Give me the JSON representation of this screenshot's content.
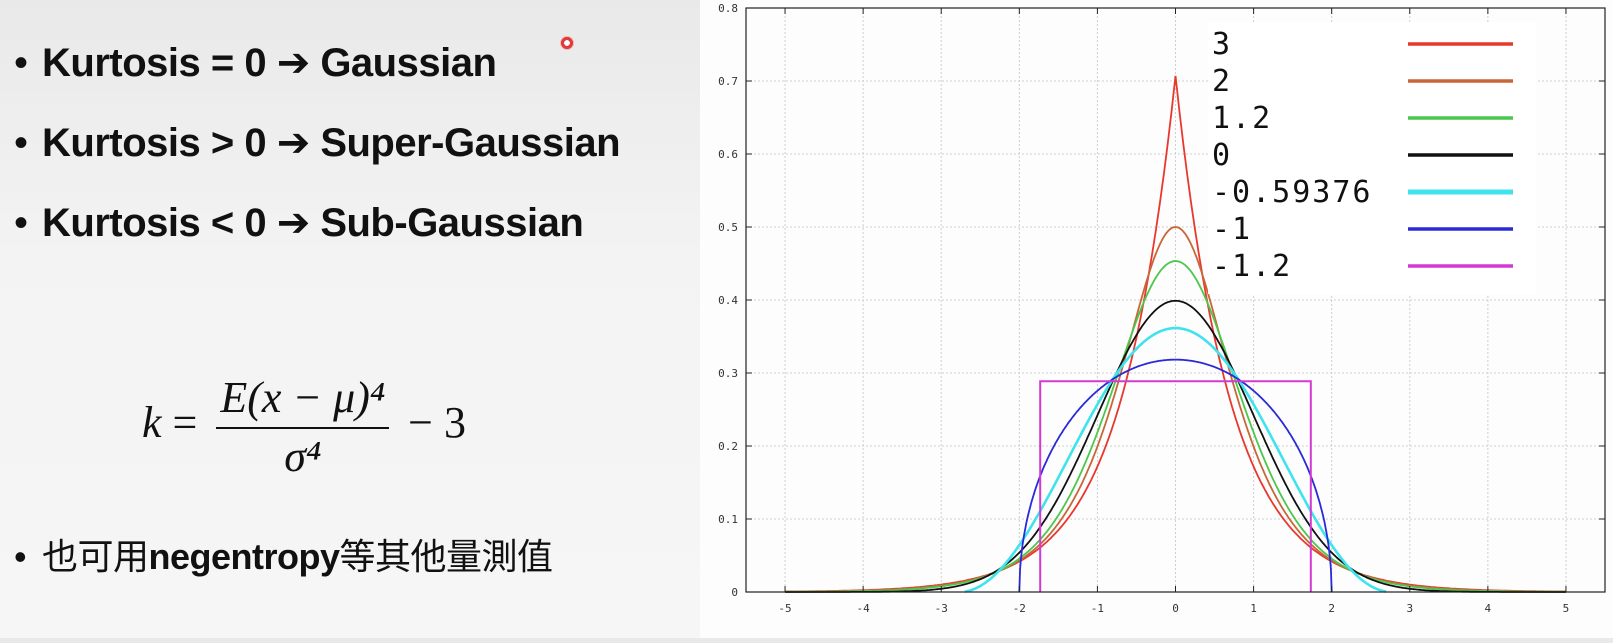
{
  "bullets": [
    {
      "marker": "•",
      "text": "Kurtosis = 0 ➔ Gaussian"
    },
    {
      "marker": "•",
      "text": "Kurtosis > 0 ➔ Super-Gaussian"
    },
    {
      "marker": "•",
      "text": "Kurtosis < 0 ➔ Sub-Gaussian"
    }
  ],
  "formula": {
    "lhs": "k",
    "equals": "=",
    "numerator": "E(x − μ)⁴",
    "denominator": "σ⁴",
    "suffix": "− 3"
  },
  "note": {
    "marker": "•",
    "prefix": "也可用",
    "keyword": "negentropy",
    "suffix": "等其他量測值"
  },
  "cursor_color": "#e23a3a",
  "chart_data": {
    "type": "line",
    "title": "",
    "xlabel": "",
    "ylabel": "",
    "xlim": [
      -5.5,
      5.5
    ],
    "ylim": [
      0,
      0.8
    ],
    "x_ticks": [
      "-5",
      "-4",
      "-3",
      "-2",
      "-1",
      "0",
      "1",
      "2",
      "3",
      "4",
      "5"
    ],
    "y_ticks": [
      "0",
      "0.1",
      "0.2",
      "0.3",
      "0.4",
      "0.5",
      "0.6",
      "0.7",
      "0.8"
    ],
    "grid": true,
    "legend_position": "top-right",
    "series": [
      {
        "name": "3",
        "color": "#e8382e",
        "distribution": "laplace",
        "variance": 1,
        "x": [
          -5,
          -4,
          -3,
          -2,
          -1.5,
          -1,
          -0.5,
          0,
          0.5,
          1,
          1.5,
          2,
          3,
          4,
          5
        ],
        "y": [
          0.0006,
          0.0025,
          0.0101,
          0.0416,
          0.0848,
          0.1723,
          0.3474,
          0.7071,
          0.3474,
          0.1723,
          0.0848,
          0.0416,
          0.0101,
          0.0025,
          0.0006
        ]
      },
      {
        "name": "2",
        "color": "#c8663a",
        "distribution": "hyperbolic-secant",
        "variance": 1,
        "x": [
          -5,
          -4,
          -3,
          -2,
          -1.5,
          -1,
          -0.5,
          0,
          0.5,
          1,
          1.5,
          2,
          3,
          4,
          5
        ],
        "y": [
          0.0004,
          0.0019,
          0.009,
          0.0431,
          0.0933,
          0.1977,
          0.3621,
          0.5,
          0.3621,
          0.1977,
          0.0933,
          0.0431,
          0.009,
          0.0019,
          0.0004
        ]
      },
      {
        "name": "1.2",
        "color": "#4bc84b",
        "distribution": "logistic",
        "variance": 1,
        "x": [
          -5,
          -4,
          -3,
          -2,
          -1.5,
          -1,
          -0.5,
          0,
          0.5,
          1,
          1.5,
          2,
          3,
          4,
          5
        ],
        "y": [
          0.0003,
          0.0017,
          0.0087,
          0.0437,
          0.0961,
          0.2027,
          0.3598,
          0.4534,
          0.3598,
          0.2027,
          0.0961,
          0.0437,
          0.0087,
          0.0017,
          0.0003
        ]
      },
      {
        "name": "0",
        "color": "#111111",
        "distribution": "normal",
        "variance": 1,
        "x": [
          -5,
          -4,
          -3,
          -2,
          -1.5,
          -1,
          -0.5,
          0,
          0.5,
          1,
          1.5,
          2,
          3,
          4,
          5
        ],
        "y": [
          1.5e-06,
          0.0001,
          0.0044,
          0.054,
          0.1295,
          0.242,
          0.3521,
          0.3989,
          0.3521,
          0.242,
          0.1295,
          0.054,
          0.0044,
          0.0001,
          1.5e-06
        ]
      },
      {
        "name": "-0.59376",
        "color": "#3fe3ee",
        "distribution": "raised-cosine",
        "variance": 1,
        "x": [
          -2.7,
          -2.5,
          -2,
          -1.5,
          -1,
          -0.5,
          0,
          0.5,
          1,
          1.5,
          2,
          2.5,
          2.7
        ],
        "y": [
          0,
          0.0021,
          0.0556,
          0.16,
          0.2625,
          0.3358,
          0.3618,
          0.3358,
          0.2625,
          0.16,
          0.0556,
          0.0021,
          0
        ]
      },
      {
        "name": "-1",
        "color": "#2a2ad8",
        "distribution": "wigner-semicircle",
        "variance": 1,
        "x": [
          -2,
          -1.9,
          -1.7,
          -1.5,
          -1.2,
          -1,
          -0.5,
          0,
          0.5,
          1,
          1.2,
          1.5,
          1.7,
          1.9,
          2
        ],
        "y": [
          0,
          0.0994,
          0.1677,
          0.2105,
          0.2546,
          0.2757,
          0.3082,
          0.3183,
          0.3082,
          0.2757,
          0.2546,
          0.2105,
          0.1677,
          0.0994,
          0
        ]
      },
      {
        "name": "-1.2",
        "color": "#d23ad2",
        "distribution": "uniform",
        "variance": 1,
        "x": [
          -1.732,
          -1.732,
          1.732,
          1.732
        ],
        "y": [
          0,
          0.2887,
          0.2887,
          0
        ]
      }
    ]
  }
}
